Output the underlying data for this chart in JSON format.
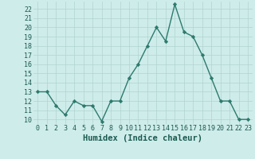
{
  "xlabel": "Humidex (Indice chaleur)",
  "x": [
    0,
    1,
    2,
    3,
    4,
    5,
    6,
    7,
    8,
    9,
    10,
    11,
    12,
    13,
    14,
    15,
    16,
    17,
    18,
    19,
    20,
    21,
    22,
    23
  ],
  "y": [
    13,
    13,
    11.5,
    10.5,
    12,
    11.5,
    11.5,
    9.8,
    12,
    12,
    14.5,
    16,
    18,
    20,
    18.5,
    22.5,
    19.5,
    19,
    17,
    14.5,
    12,
    12,
    10,
    10
  ],
  "line_color": "#2d7a6e",
  "marker": "D",
  "marker_size": 2.2,
  "bg_color": "#ceecea",
  "grid_color": "#b0d5d0",
  "tick_label_color": "#1a5a50",
  "axis_label_color": "#1a5a50",
  "ylim": [
    9.5,
    22.8
  ],
  "xlim": [
    -0.5,
    23.5
  ],
  "yticks": [
    10,
    11,
    12,
    13,
    14,
    15,
    16,
    17,
    18,
    19,
    20,
    21,
    22
  ],
  "xticks": [
    0,
    1,
    2,
    3,
    4,
    5,
    6,
    7,
    8,
    9,
    10,
    11,
    12,
    13,
    14,
    15,
    16,
    17,
    18,
    19,
    20,
    21,
    22,
    23
  ],
  "xlabel_fontsize": 7.5,
  "tick_fontsize": 6.0,
  "linewidth": 1.0
}
